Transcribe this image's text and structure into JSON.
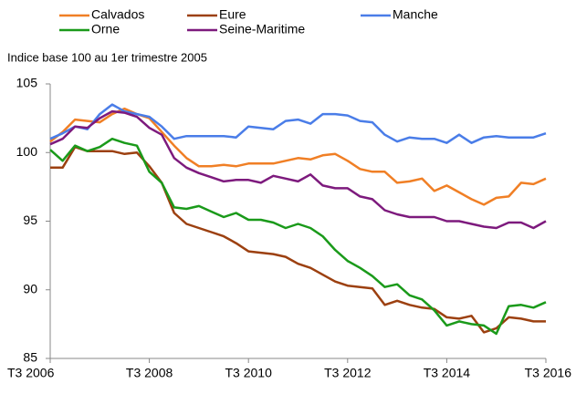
{
  "chart_data": {
    "type": "line",
    "subtitle": "Indice base 100 au 1er trimestre 2005",
    "categories": [
      "T3 2006",
      null,
      null,
      null,
      null,
      null,
      null,
      null,
      "T3 2008",
      null,
      null,
      null,
      null,
      null,
      null,
      null,
      "T3 2010",
      null,
      null,
      null,
      null,
      null,
      null,
      null,
      "T3 2012",
      null,
      null,
      null,
      null,
      null,
      null,
      null,
      "T3 2014",
      null,
      null,
      null,
      null,
      null,
      null,
      null,
      "T3 2016"
    ],
    "series": [
      {
        "name": "Calvados",
        "color": "#f07f25",
        "values": [
          100.8,
          101.5,
          102.4,
          102.3,
          102.2,
          102.8,
          103.2,
          102.8,
          102.5,
          101.5,
          100.5,
          99.6,
          99.0,
          99.0,
          99.1,
          99.0,
          99.2,
          99.2,
          99.2,
          99.4,
          99.6,
          99.5,
          99.8,
          99.9,
          99.4,
          98.8,
          98.6,
          98.6,
          97.8,
          97.9,
          98.1,
          97.2,
          97.6,
          97.1,
          96.6,
          96.2,
          96.7,
          96.8,
          97.8,
          97.7,
          98.1
        ]
      },
      {
        "name": "Eure",
        "color": "#9c4010",
        "values": [
          98.9,
          98.9,
          100.4,
          100.1,
          100.1,
          100.1,
          99.9,
          100.0,
          99.0,
          97.8,
          95.6,
          94.8,
          94.5,
          94.2,
          93.9,
          93.4,
          92.8,
          92.7,
          92.6,
          92.4,
          91.9,
          91.6,
          91.1,
          90.6,
          90.3,
          90.2,
          90.1,
          88.9,
          89.2,
          88.9,
          88.7,
          88.6,
          88.0,
          87.9,
          88.1,
          86.9,
          87.2,
          88.0,
          87.9,
          87.7,
          87.7
        ]
      },
      {
        "name": "Manche",
        "color": "#4a7de8",
        "values": [
          101.0,
          101.4,
          101.9,
          101.7,
          102.8,
          103.5,
          103.0,
          102.8,
          102.6,
          101.9,
          101.0,
          101.2,
          101.2,
          101.2,
          101.2,
          101.1,
          101.9,
          101.8,
          101.7,
          102.3,
          102.4,
          102.1,
          102.8,
          102.8,
          102.7,
          102.3,
          102.2,
          101.3,
          100.8,
          101.1,
          101.0,
          101.0,
          100.7,
          101.3,
          100.7,
          101.1,
          101.2,
          101.1,
          101.1,
          101.1,
          101.4
        ]
      },
      {
        "name": "Orne",
        "color": "#1a9a1a",
        "values": [
          100.2,
          99.4,
          100.5,
          100.1,
          100.4,
          101.0,
          100.7,
          100.5,
          98.6,
          97.8,
          96.0,
          95.9,
          96.1,
          95.7,
          95.3,
          95.6,
          95.1,
          95.1,
          94.9,
          94.5,
          94.8,
          94.5,
          93.9,
          92.9,
          92.1,
          91.6,
          91.0,
          90.2,
          90.4,
          89.6,
          89.3,
          88.5,
          87.4,
          87.7,
          87.5,
          87.4,
          86.8,
          88.8,
          88.9,
          88.7,
          89.1
        ]
      },
      {
        "name": "Seine-Maritime",
        "color": "#7d1a7d",
        "values": [
          100.6,
          101.0,
          101.9,
          101.8,
          102.5,
          103.0,
          102.9,
          102.6,
          101.8,
          101.3,
          99.6,
          98.9,
          98.5,
          98.2,
          97.9,
          98.0,
          98.0,
          97.8,
          98.3,
          98.1,
          97.9,
          98.4,
          97.6,
          97.4,
          97.4,
          96.8,
          96.6,
          95.8,
          95.5,
          95.3,
          95.3,
          95.3,
          95.0,
          95.0,
          94.8,
          94.6,
          94.5,
          94.9,
          94.9,
          94.5,
          95.0
        ]
      }
    ],
    "ylim": [
      85,
      105
    ],
    "yticks": [
      85,
      90,
      95,
      100,
      105
    ],
    "grid": false,
    "legend": "top"
  }
}
